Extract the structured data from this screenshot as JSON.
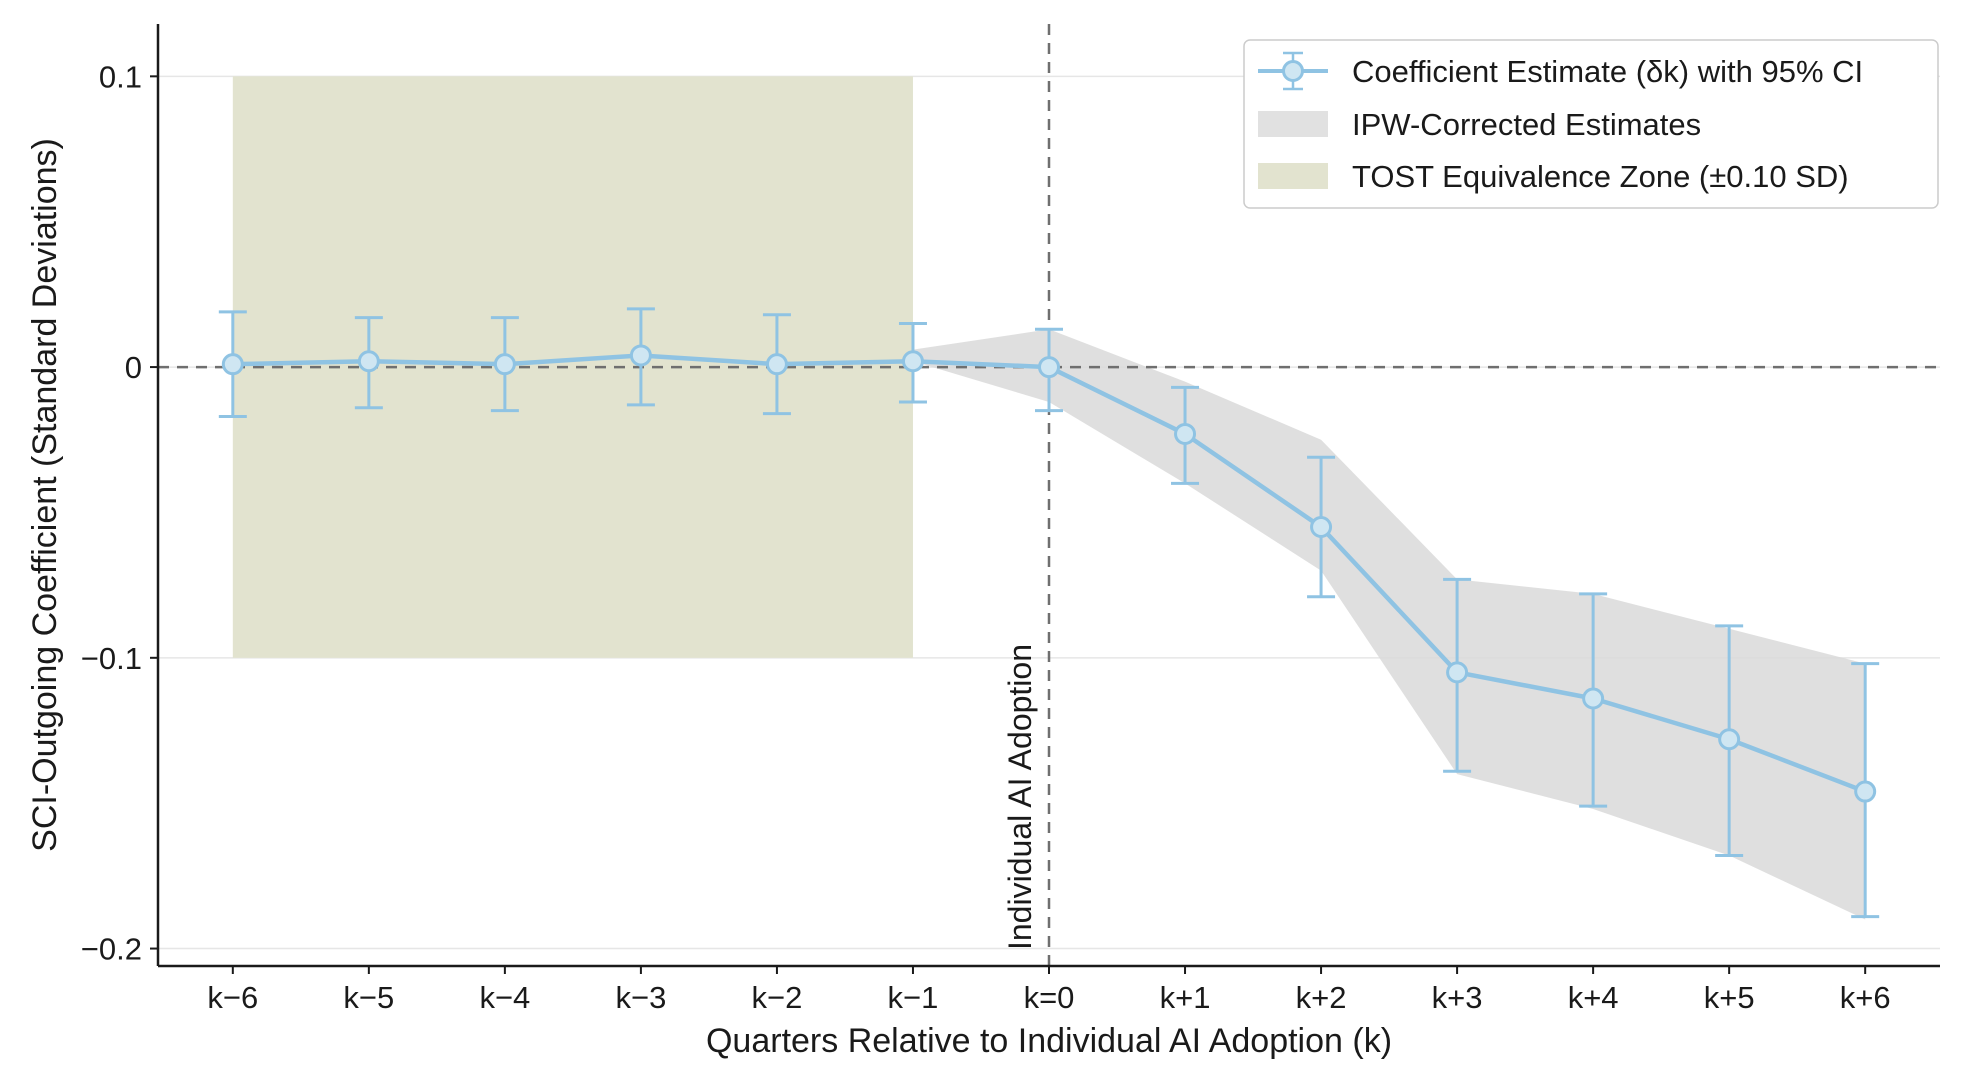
{
  "chart_data": {
    "type": "line",
    "categories": [
      "k−6",
      "k−5",
      "k−4",
      "k−3",
      "k−2",
      "k−1",
      "k=0",
      "k+1",
      "k+2",
      "k+3",
      "k+4",
      "k+5",
      "k+6"
    ],
    "x": [
      -6,
      -5,
      -4,
      -3,
      -2,
      -1,
      0,
      1,
      2,
      3,
      4,
      5,
      6
    ],
    "series": [
      {
        "name": "Coefficient Estimate (δk) with 95% CI",
        "values": [
          0.001,
          0.002,
          0.001,
          0.004,
          0.001,
          0.002,
          0.0,
          -0.023,
          -0.055,
          -0.105,
          -0.114,
          -0.128,
          -0.146
        ],
        "ci_lower": [
          -0.017,
          -0.014,
          -0.015,
          -0.013,
          -0.016,
          -0.012,
          -0.015,
          -0.04,
          -0.079,
          -0.139,
          -0.151,
          -0.168,
          -0.189
        ],
        "ci_upper": [
          0.019,
          0.017,
          0.017,
          0.02,
          0.018,
          0.015,
          0.013,
          -0.007,
          -0.031,
          -0.073,
          -0.078,
          -0.089,
          -0.102
        ],
        "color": "#8fc3e3"
      },
      {
        "name": "IPW-Corrected Estimates",
        "type": "band",
        "x": [
          -1,
          0,
          1,
          2,
          3,
          4,
          5,
          6
        ],
        "lower": [
          0.002,
          -0.012,
          -0.04,
          -0.07,
          -0.14,
          -0.152,
          -0.168,
          -0.19
        ],
        "upper": [
          0.006,
          0.013,
          -0.005,
          -0.025,
          -0.073,
          -0.078,
          -0.09,
          -0.102
        ],
        "color": "#d9d9d9"
      }
    ],
    "equivalence_zone": {
      "name": "TOST Equivalence Zone (±0.10 SD)",
      "x_range": [
        -6,
        -1
      ],
      "y_range": [
        -0.1,
        0.1
      ],
      "color": "#e2e3cf"
    },
    "reference_lines": {
      "vertical_x": 0,
      "vertical_label": "Individual AI Adoption",
      "horizontal_y": 0
    },
    "title": "",
    "xlabel": "Quarters Relative to Individual AI Adoption (k)",
    "ylabel": "SCI-Outgoing Coefficient (Standard Deviations)",
    "ylim": [
      -0.206,
      0.118
    ],
    "xlim": [
      -6.55,
      6.55
    ],
    "yticks": [
      0.1,
      0,
      -0.1,
      -0.2
    ],
    "ytick_labels": [
      "0.1",
      "0",
      "−0.1",
      "−0.2"
    ],
    "grid": "horizontal",
    "legend": {
      "placement": "top-right",
      "entries": [
        "Coefficient Estimate (δk) with 95% CI",
        "IPW-Corrected Estimates",
        "TOST Equivalence Zone (±0.10 SD)"
      ]
    }
  }
}
